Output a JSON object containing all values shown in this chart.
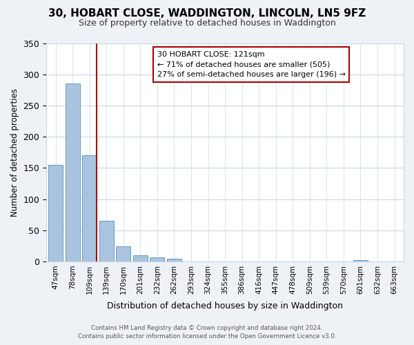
{
  "title": "30, HOBART CLOSE, WADDINGTON, LINCOLN, LN5 9FZ",
  "subtitle": "Size of property relative to detached houses in Waddington",
  "xlabel": "Distribution of detached houses by size in Waddington",
  "ylabel": "Number of detached properties",
  "bar_labels": [
    "47sqm",
    "78sqm",
    "109sqm",
    "139sqm",
    "170sqm",
    "201sqm",
    "232sqm",
    "262sqm",
    "293sqm",
    "324sqm",
    "355sqm",
    "386sqm",
    "416sqm",
    "447sqm",
    "478sqm",
    "509sqm",
    "539sqm",
    "570sqm",
    "601sqm",
    "632sqm",
    "663sqm"
  ],
  "bar_values": [
    155,
    285,
    170,
    65,
    24,
    10,
    7,
    4,
    0,
    0,
    0,
    0,
    0,
    0,
    0,
    0,
    0,
    0,
    2,
    0,
    0
  ],
  "bar_color": "#aac4e0",
  "bar_edge_color": "#6699bb",
  "ylim": [
    0,
    350
  ],
  "yticks": [
    0,
    50,
    100,
    150,
    200,
    250,
    300,
    350
  ],
  "annotation_line1": "30 HOBART CLOSE: 121sqm",
  "annotation_line2": "← 71% of detached houses are smaller (505)",
  "annotation_line3": "27% of semi-detached houses are larger (196) →",
  "footer_line1": "Contains HM Land Registry data © Crown copyright and database right 2024.",
  "footer_line2": "Contains public sector information licensed under the Open Government Licence v3.0.",
  "background_color": "#eef2f7",
  "plot_bg_color": "#ffffff",
  "grid_color": "#c8d8e8",
  "redline_color": "#aa0000",
  "title_fontsize": 11,
  "subtitle_fontsize": 9
}
